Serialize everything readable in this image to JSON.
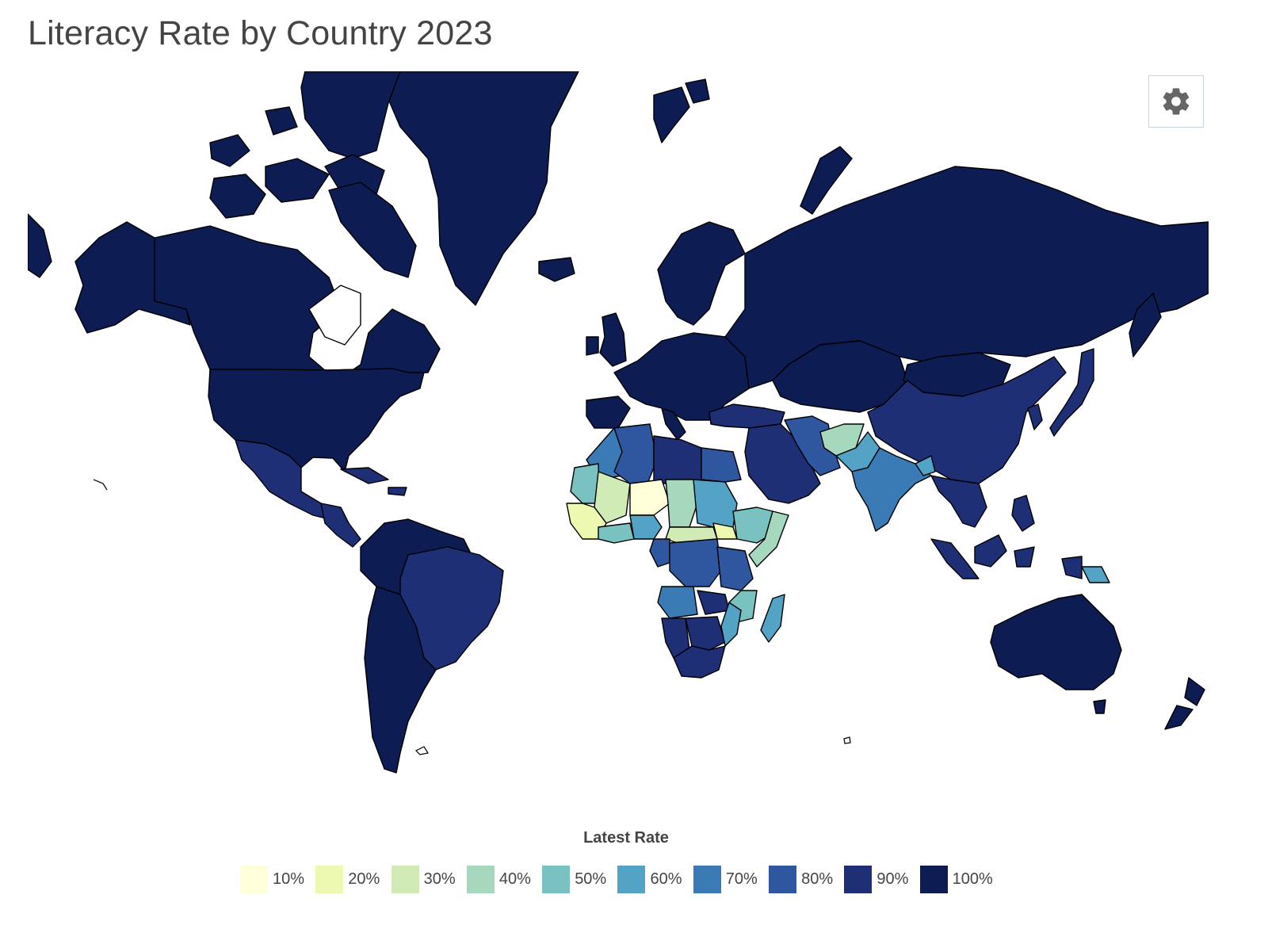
{
  "title": "Literacy Rate by Country 2023",
  "legend": {
    "title": "Latest Rate",
    "items": [
      {
        "label": "10%",
        "color": "#ffffd9"
      },
      {
        "label": "20%",
        "color": "#edf8b1"
      },
      {
        "label": "30%",
        "color": "#d0ebb5"
      },
      {
        "label": "40%",
        "color": "#a6d8bd"
      },
      {
        "label": "50%",
        "color": "#7ac1c1"
      },
      {
        "label": "60%",
        "color": "#52a3c5"
      },
      {
        "label": "70%",
        "color": "#3a7ab5"
      },
      {
        "label": "80%",
        "color": "#2f579f"
      },
      {
        "label": "90%",
        "color": "#1f2f76"
      },
      {
        "label": "100%",
        "color": "#0d1c52"
      }
    ]
  },
  "settings": {
    "icon": "gear-icon"
  }
}
